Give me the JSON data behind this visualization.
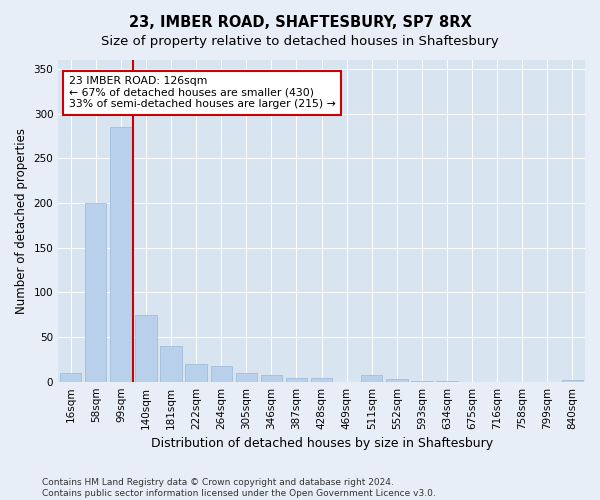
{
  "title": "23, IMBER ROAD, SHAFTESBURY, SP7 8RX",
  "subtitle": "Size of property relative to detached houses in Shaftesbury",
  "xlabel": "Distribution of detached houses by size in Shaftesbury",
  "ylabel": "Number of detached properties",
  "bar_labels": [
    "16sqm",
    "58sqm",
    "99sqm",
    "140sqm",
    "181sqm",
    "222sqm",
    "264sqm",
    "305sqm",
    "346sqm",
    "387sqm",
    "428sqm",
    "469sqm",
    "511sqm",
    "552sqm",
    "593sqm",
    "634sqm",
    "675sqm",
    "716sqm",
    "758sqm",
    "799sqm",
    "840sqm"
  ],
  "bar_values": [
    10,
    200,
    285,
    75,
    40,
    20,
    17,
    10,
    8,
    4,
    4,
    0,
    8,
    3,
    1,
    1,
    0,
    0,
    0,
    0,
    2
  ],
  "bar_color": "#b8d0ea",
  "bar_edge_color": "#9ab8d8",
  "property_line_x": 2.5,
  "annotation_text": "23 IMBER ROAD: 126sqm\n← 67% of detached houses are smaller (430)\n33% of semi-detached houses are larger (215) →",
  "annotation_box_facecolor": "#ffffff",
  "annotation_box_edgecolor": "#cc0000",
  "red_line_color": "#cc0000",
  "fig_facecolor": "#e8eef8",
  "plot_bg_color": "#d8e4f0",
  "grid_color": "#ffffff",
  "ylim": [
    0,
    360
  ],
  "yticks": [
    0,
    50,
    100,
    150,
    200,
    250,
    300,
    350
  ],
  "footer_text": "Contains HM Land Registry data © Crown copyright and database right 2024.\nContains public sector information licensed under the Open Government Licence v3.0.",
  "title_fontsize": 10.5,
  "subtitle_fontsize": 9.5,
  "xlabel_fontsize": 9,
  "ylabel_fontsize": 8.5,
  "tick_fontsize": 7.5,
  "annotation_fontsize": 7.8,
  "footer_fontsize": 6.5
}
